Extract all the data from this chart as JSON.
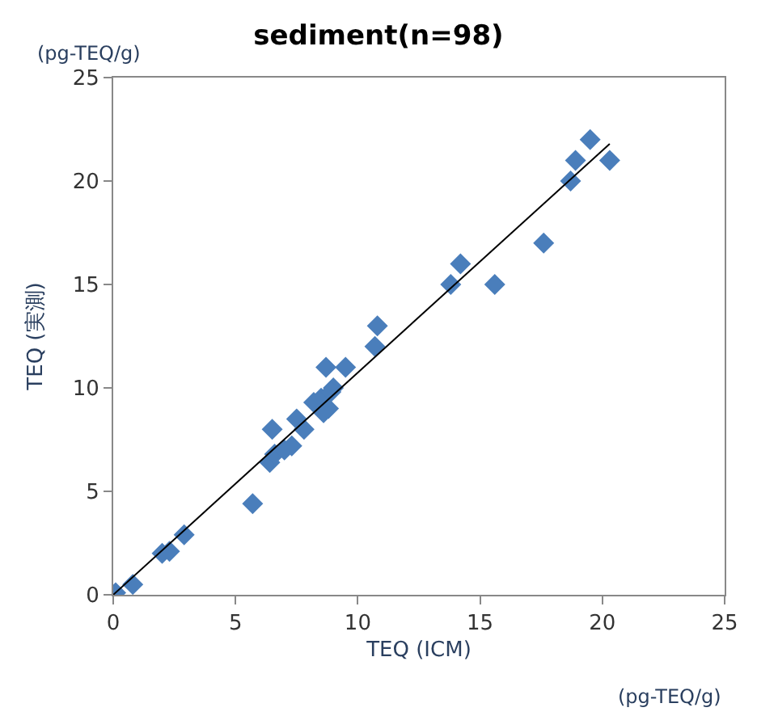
{
  "chart_data": {
    "type": "scatter",
    "title": "sediment(n=98)",
    "xlabel": "TEQ (ICM)",
    "ylabel": "TEQ (実測)",
    "annotations": [
      "(pg-TEQ/g)",
      "(pg-TEQ/g)"
    ],
    "xlim": [
      0,
      25
    ],
    "ylim": [
      0,
      25
    ],
    "xticks": [
      0,
      5,
      10,
      15,
      20,
      25
    ],
    "yticks": [
      0,
      5,
      10,
      15,
      20,
      25
    ],
    "legend": false,
    "marker": "diamond",
    "series": [
      {
        "color": "#4a7ebb",
        "x": [
          0.1,
          0.8,
          2,
          2.3,
          2.9,
          5.7,
          6.4,
          6.6,
          6.5,
          7,
          7.3,
          7.5,
          7.8,
          8.2,
          8.5,
          8.7,
          8.8,
          9,
          8.9,
          9.5,
          8.6,
          10.7,
          10.8,
          13.8,
          14.2,
          15.6,
          17.6,
          18.7,
          18.9,
          19.5,
          20.3
        ],
        "values": [
          0.1,
          0.5,
          2,
          2.1,
          2.9,
          4.4,
          6.4,
          6.8,
          8,
          7,
          7.2,
          8.5,
          8,
          9.3,
          9.5,
          11,
          9,
          10,
          9.8,
          11,
          8.8,
          12,
          13,
          15,
          16,
          15,
          17,
          20,
          21,
          22,
          21
        ]
      },
      {
        "type": "line",
        "marker": "none",
        "color": "#000000",
        "x": [
          0,
          20.3
        ],
        "values": [
          0,
          21.8
        ]
      }
    ]
  }
}
